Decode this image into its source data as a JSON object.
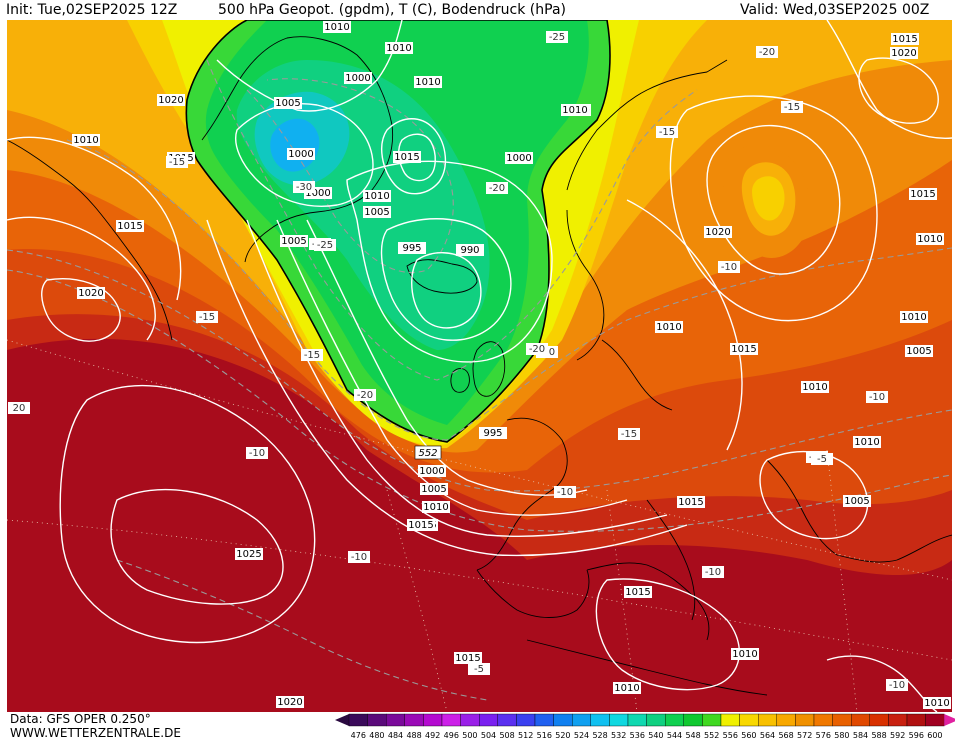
{
  "header": {
    "init": "Init: Tue,02SEP2025 12Z",
    "title": "500 hPa Geopot. (gpdm), T (C), Bodendruck (hPa)",
    "valid": "Valid: Wed,03SEP2025 00Z"
  },
  "footer": {
    "data_source": "Data: GFS OPER 0.250°",
    "website": "WWW.WETTERZENTRALE.DE"
  },
  "legend": {
    "ticks": [
      "476",
      "480",
      "484",
      "488",
      "492",
      "496",
      "500",
      "504",
      "508",
      "512",
      "516",
      "520",
      "524",
      "528",
      "532",
      "536",
      "540",
      "544",
      "548",
      "552",
      "556",
      "560",
      "564",
      "568",
      "572",
      "576",
      "580",
      "584",
      "588",
      "592",
      "596",
      "600"
    ],
    "colors": [
      "#3a0a5a",
      "#5a0a7a",
      "#7a0a9a",
      "#9a0ab6",
      "#b40ad0",
      "#cc20e8",
      "#9a20e8",
      "#7a20f0",
      "#5a30f0",
      "#3a40f0",
      "#2060f0",
      "#1080f0",
      "#10a0f0",
      "#10c0f0",
      "#10d8e0",
      "#10d8b0",
      "#10d080",
      "#10d050",
      "#10c830",
      "#40d820",
      "#f0f000",
      "#f8d800",
      "#f8c000",
      "#f8a800",
      "#f09000",
      "#f07800",
      "#e86000",
      "#e04800",
      "#d83000",
      "#c82010",
      "#b01010",
      "#a00020"
    ]
  },
  "map": {
    "colors": {
      "dark_red": "#a80c1c",
      "red": "#c82a14",
      "red_orange": "#dc4a0c",
      "orange_dark": "#e86408",
      "orange": "#f08a08",
      "light_orange": "#f8b008",
      "gold": "#f8d000",
      "yellow": "#f0f000",
      "green_light": "#38d838",
      "green": "#10d050",
      "green_cyan": "#10d080",
      "cyan": "#10c8c0",
      "light_blue": "#10b0f0",
      "isobar": "#ffffff",
      "isotherm": "#9a9a9a",
      "coast": "#000000"
    },
    "isobar_labels": [
      "1010",
      "1010",
      "1000",
      "1010",
      "1005",
      "1000",
      "1010",
      "1015",
      "1000",
      "1010",
      "1005",
      "1005",
      "995",
      "990",
      "1000",
      "1020",
      "1010",
      "1015",
      "1015",
      "1020",
      "1010",
      "1015",
      "1015",
      "1010",
      "1020",
      "1010",
      "1015",
      "1010",
      "1005",
      "1010",
      "1015",
      "1010",
      "995",
      "1000",
      "1005",
      "1010",
      "1015",
      "1015",
      "1025",
      "1015",
      "1010",
      "1015",
      "1010",
      "1005",
      "1020",
      "1020",
      "1010"
    ],
    "temperature_labels": [
      "-25",
      "-20",
      "-15",
      "-20",
      "-15",
      "-25",
      "-30",
      "-25",
      "-20",
      "-15",
      "-15",
      "-10",
      "-15",
      "-20",
      "-20",
      "-10",
      "-15",
      "-10",
      "-10",
      "-10",
      "-10",
      "-10",
      "-5",
      "-10",
      "-5",
      "20"
    ],
    "trough_label": "552"
  }
}
